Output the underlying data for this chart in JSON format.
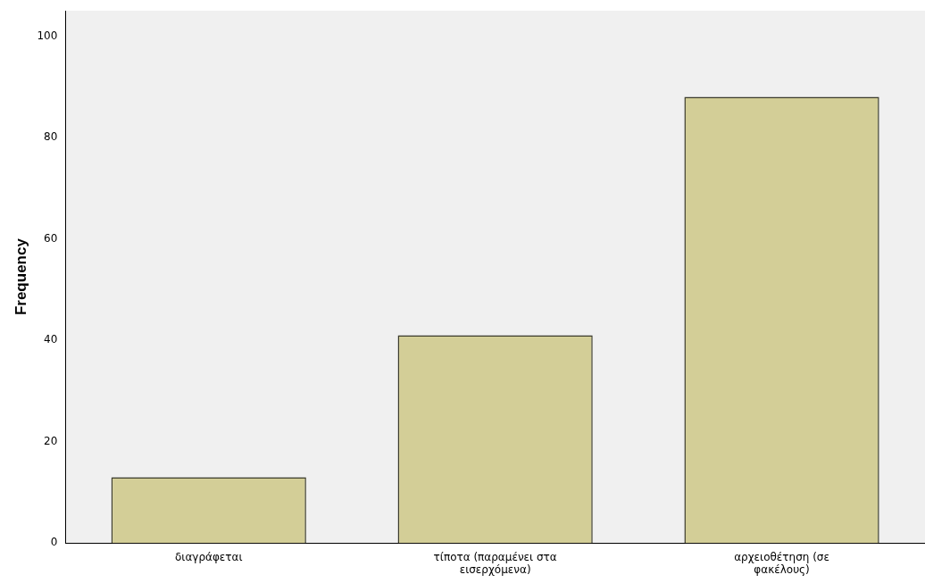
{
  "chart_data": {
    "type": "bar",
    "ylabel": "Frequency",
    "categories": [
      "διαγράφεται",
      "τίποτα (παραμένει στα εισερχόμενα)",
      "αρχειοθέτηση (σε φακέλους)"
    ],
    "values": [
      13,
      41,
      88
    ],
    "color": "#d3ce97",
    "ylim": [
      0,
      105
    ],
    "yticks": [
      0,
      20,
      40,
      60,
      80,
      100
    ],
    "grid": false,
    "legend": false
  }
}
